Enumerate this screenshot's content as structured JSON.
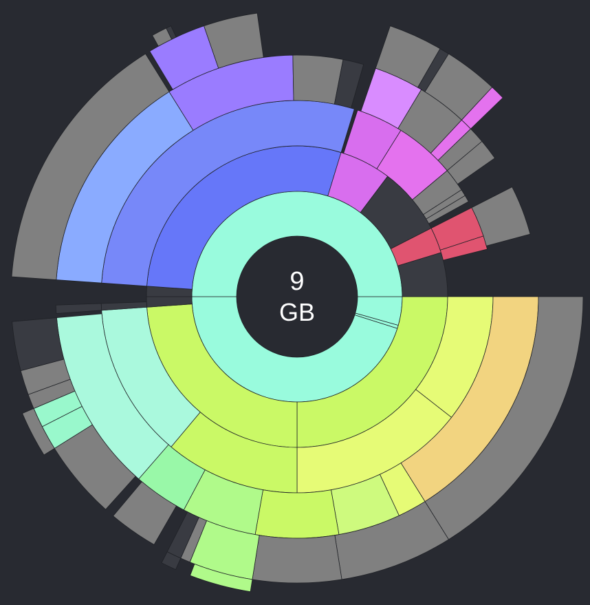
{
  "summary": {
    "total_value": "9",
    "total_unit": "GB"
  },
  "colors": {
    "background": "#282a31",
    "center_disk": "#282a31",
    "free_space": "#393b42",
    "gray_file": "#808080",
    "text": "#ffffff"
  },
  "chart_data": {
    "type": "sunburst",
    "units": "degrees",
    "title": "",
    "center_label": [
      "9",
      "GB"
    ],
    "rings": [
      {
        "level": 1,
        "segments": [
          {
            "start": 0,
            "end": 15.8,
            "color": "#99fbdd"
          },
          {
            "start": 15.8,
            "end": 17.6,
            "color": "#99fbdd"
          },
          {
            "start": 17.6,
            "end": 180,
            "color": "#99fbdd"
          },
          {
            "start": 180,
            "end": 360,
            "color": "#99fbdd"
          }
        ]
      },
      {
        "level": 2,
        "segments": [
          {
            "start": 0,
            "end": 90,
            "color": "#caf966"
          },
          {
            "start": 90,
            "end": 176,
            "color": "#caf966"
          },
          {
            "start": 176,
            "end": 180,
            "color": "#393b42"
          },
          {
            "start": 180,
            "end": 184,
            "color": "#393b42"
          },
          {
            "start": 184,
            "end": 287,
            "color": "#6677f9"
          },
          {
            "start": 287,
            "end": 307,
            "color": "#d86eee"
          },
          {
            "start": 307,
            "end": 333,
            "color": "#393b42"
          },
          {
            "start": 333,
            "end": 343,
            "color": "#e05470"
          },
          {
            "start": 343,
            "end": 360,
            "color": "#393b42"
          }
        ]
      },
      {
        "level": 3,
        "segments": [
          {
            "start": 0,
            "end": 38,
            "color": "#e6fb76"
          },
          {
            "start": 38,
            "end": 90,
            "color": "#e6fb76"
          },
          {
            "start": 90,
            "end": 130,
            "color": "#caf966"
          },
          {
            "start": 130,
            "end": 176,
            "color": "#aaf9dd"
          },
          {
            "start": 176,
            "end": 178,
            "color": "#393b42"
          },
          {
            "start": 184,
            "end": 287,
            "color": "#7788f9"
          },
          {
            "start": 288,
            "end": 302,
            "color": "#d86eee"
          },
          {
            "start": 302,
            "end": 320,
            "color": "#e472ee"
          },
          {
            "start": 320,
            "end": 327,
            "color": "#808080"
          },
          {
            "start": 327,
            "end": 329,
            "color": "#808080"
          },
          {
            "start": 329,
            "end": 331,
            "color": "#808080"
          },
          {
            "start": 333,
            "end": 342,
            "color": "#e05470"
          },
          {
            "start": 342,
            "end": 346,
            "color": "#e05470"
          }
        ]
      },
      {
        "level": 4,
        "segments": [
          {
            "start": 0,
            "end": 58,
            "color": "#f2d480"
          },
          {
            "start": 58,
            "end": 65,
            "color": "#e6fb76"
          },
          {
            "start": 65,
            "end": 80,
            "color": "#cefa7e"
          },
          {
            "start": 80,
            "end": 100,
            "color": "#caf966"
          },
          {
            "start": 100,
            "end": 118,
            "color": "#b0fa8a"
          },
          {
            "start": 118,
            "end": 131,
            "color": "#99f8a8"
          },
          {
            "start": 131,
            "end": 175,
            "color": "#aaf9dd"
          },
          {
            "start": 176,
            "end": 178,
            "color": "#393b42"
          },
          {
            "start": 184,
            "end": 238,
            "color": "#8aabff"
          },
          {
            "start": 238,
            "end": 269,
            "color": "#9a7cff"
          },
          {
            "start": 269,
            "end": 281,
            "color": "#808080"
          },
          {
            "start": 281,
            "end": 286,
            "color": "#393b42"
          },
          {
            "start": 289,
            "end": 301,
            "color": "#d98cff"
          },
          {
            "start": 301,
            "end": 313,
            "color": "#808080"
          },
          {
            "start": 313,
            "end": 316,
            "color": "#e472ee"
          },
          {
            "start": 316,
            "end": 320,
            "color": "#808080"
          },
          {
            "start": 320,
            "end": 325,
            "color": "#808080"
          },
          {
            "start": 333,
            "end": 345,
            "color": "#808080"
          }
        ]
      },
      {
        "level": 5,
        "segments": [
          {
            "start": 0,
            "end": 58,
            "color": "#808080"
          },
          {
            "start": 58,
            "end": 81,
            "color": "#808080"
          },
          {
            "start": 81,
            "end": 99,
            "color": "#808080"
          },
          {
            "start": 99,
            "end": 112,
            "color": "#b0fa8a"
          },
          {
            "start": 112,
            "end": 114,
            "color": "#808080"
          },
          {
            "start": 114,
            "end": 117,
            "color": "#393b42"
          },
          {
            "start": 120,
            "end": 130,
            "color": "#808080"
          },
          {
            "start": 132,
            "end": 148,
            "color": "#808080"
          },
          {
            "start": 148,
            "end": 153,
            "color": "#99f8cc"
          },
          {
            "start": 153,
            "end": 157,
            "color": "#99f8cc"
          },
          {
            "start": 157,
            "end": 160,
            "color": "#808080"
          },
          {
            "start": 160,
            "end": 165,
            "color": "#808080"
          },
          {
            "start": 165,
            "end": 175,
            "color": "#393b42"
          },
          {
            "start": 184,
            "end": 238,
            "color": "#808080"
          },
          {
            "start": 239,
            "end": 251,
            "color": "#9a7cff"
          },
          {
            "start": 251,
            "end": 262,
            "color": "#808080"
          },
          {
            "start": 289,
            "end": 300,
            "color": "#808080"
          },
          {
            "start": 300,
            "end": 302,
            "color": "#393b42"
          },
          {
            "start": 302,
            "end": 313,
            "color": "#808080"
          },
          {
            "start": 313,
            "end": 316,
            "color": "#e472ee"
          }
        ]
      },
      {
        "level": 6,
        "segments": [
          {
            "start": 99,
            "end": 111,
            "color": "#b0fa8a"
          },
          {
            "start": 114,
            "end": 117,
            "color": "#393b42"
          },
          {
            "start": 148,
            "end": 157,
            "color": "#808080"
          },
          {
            "start": 241,
            "end": 244,
            "color": "#808080"
          },
          {
            "start": 244,
            "end": 245,
            "color": "#393b42"
          }
        ]
      }
    ]
  }
}
